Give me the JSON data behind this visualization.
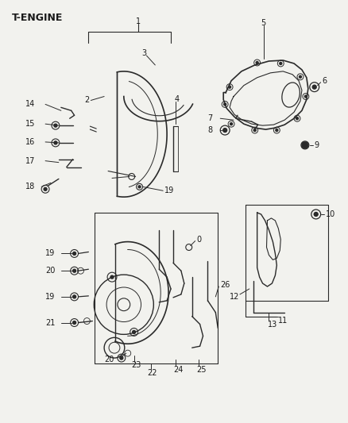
{
  "title": "T-ENGINE",
  "bg_color": "#f2f2ee",
  "line_color": "#2a2a2a",
  "text_color": "#1a1a1a",
  "figsize": [
    4.38,
    5.33
  ],
  "dpi": 100
}
